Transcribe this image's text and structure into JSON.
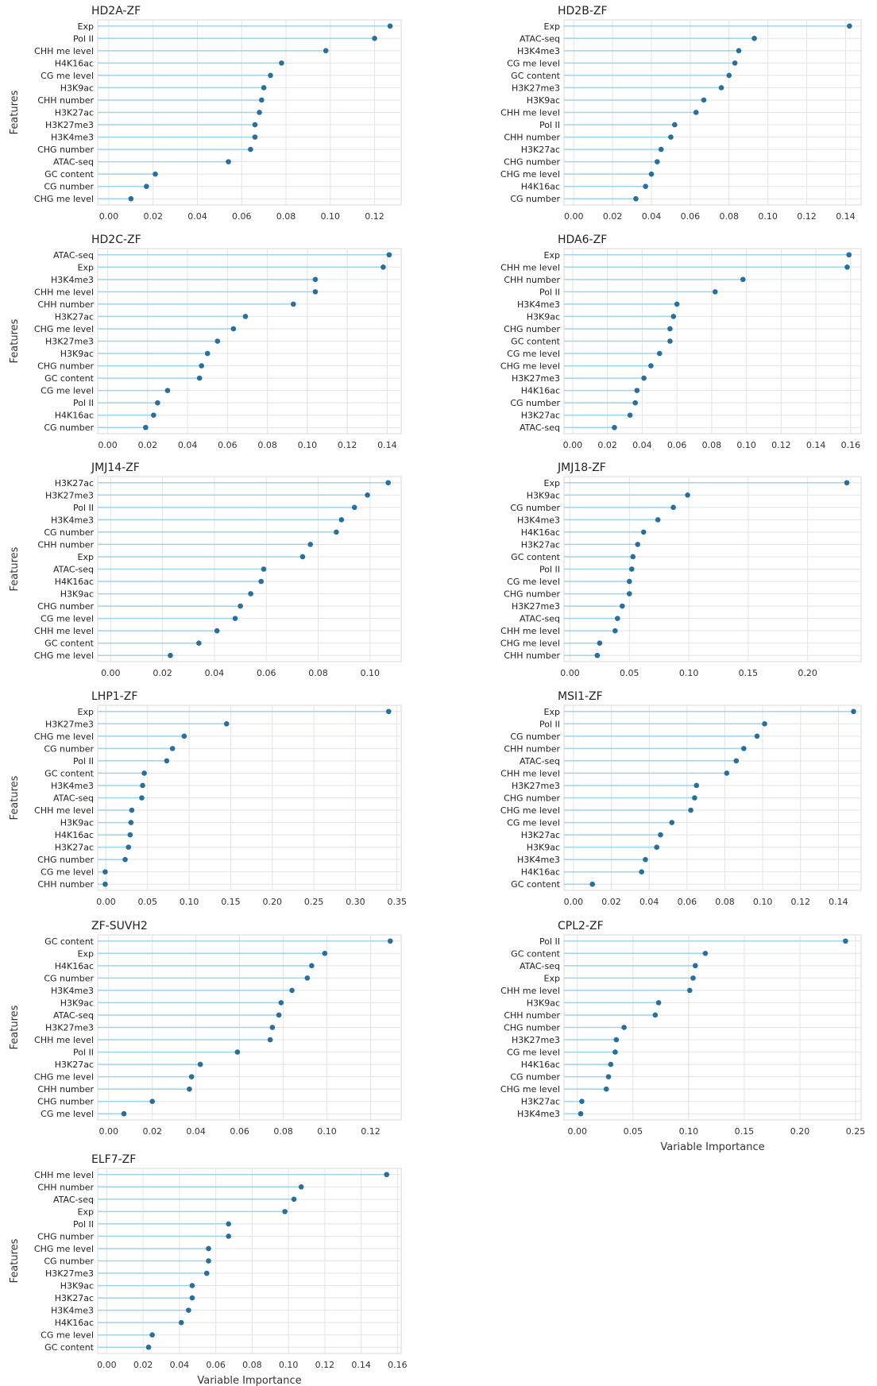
{
  "chart_data": [
    {
      "type": "lollipop",
      "title": "HD2A-ZF",
      "ylabel": "Features",
      "xlabel": "",
      "xticks": [
        0.0,
        0.02,
        0.04,
        0.06,
        0.08,
        0.1,
        0.12
      ],
      "xlim": [
        -0.005,
        0.132
      ],
      "categories": [
        "Exp",
        "Pol II",
        "CHH me level",
        "H4K16ac",
        "CG me level",
        "H3K9ac",
        "CHH number",
        "H3K27ac",
        "H3K27me3",
        "H3K4me3",
        "CHG number",
        "ATAC-seq",
        "GC content",
        "CG number",
        "CHG me level"
      ],
      "values": [
        0.127,
        0.12,
        0.098,
        0.078,
        0.073,
        0.07,
        0.069,
        0.068,
        0.066,
        0.066,
        0.064,
        0.054,
        0.021,
        0.017,
        0.01
      ]
    },
    {
      "type": "lollipop",
      "title": "HD2B-ZF",
      "ylabel": "",
      "xlabel": "",
      "xticks": [
        0.0,
        0.02,
        0.04,
        0.06,
        0.08,
        0.1,
        0.12,
        0.14
      ],
      "xlim": [
        -0.005,
        0.148
      ],
      "categories": [
        "Exp",
        "ATAC-seq",
        "H3K4me3",
        "CG me level",
        "GC content",
        "H3K27me3",
        "H3K9ac",
        "CHH me level",
        "Pol II",
        "CHH number",
        "H3K27ac",
        "CHG number",
        "CHG me level",
        "H4K16ac",
        "CG number"
      ],
      "values": [
        0.142,
        0.093,
        0.085,
        0.083,
        0.08,
        0.076,
        0.067,
        0.063,
        0.052,
        0.05,
        0.045,
        0.043,
        0.04,
        0.037,
        0.032
      ]
    },
    {
      "type": "lollipop",
      "title": "HD2C-ZF",
      "ylabel": "Features",
      "xlabel": "",
      "xticks": [
        0.0,
        0.02,
        0.04,
        0.06,
        0.08,
        0.1,
        0.12,
        0.14
      ],
      "xlim": [
        -0.005,
        0.147
      ],
      "categories": [
        "ATAC-seq",
        "Exp",
        "H3K4me3",
        "CHH me level",
        "CHH number",
        "H3K27ac",
        "CHG me level",
        "H3K27me3",
        "H3K9ac",
        "CHG number",
        "GC content",
        "CG me level",
        "Pol II",
        "H4K16ac",
        "CG number"
      ],
      "values": [
        0.141,
        0.138,
        0.104,
        0.104,
        0.093,
        0.069,
        0.063,
        0.055,
        0.05,
        0.047,
        0.046,
        0.03,
        0.025,
        0.023,
        0.019
      ]
    },
    {
      "type": "lollipop",
      "title": "HDA6-ZF",
      "ylabel": "",
      "xlabel": "",
      "xticks": [
        0.0,
        0.02,
        0.04,
        0.06,
        0.08,
        0.1,
        0.12,
        0.14,
        0.16
      ],
      "xlim": [
        -0.005,
        0.166
      ],
      "categories": [
        "Exp",
        "CHH me level",
        "CHH number",
        "Pol II",
        "H3K4me3",
        "H3K9ac",
        "CHG number",
        "GC content",
        "CG me level",
        "CHG me level",
        "H3K27me3",
        "H4K16ac",
        "CG number",
        "H3K27ac",
        "ATAC-seq"
      ],
      "values": [
        0.159,
        0.158,
        0.098,
        0.082,
        0.06,
        0.058,
        0.056,
        0.056,
        0.05,
        0.045,
        0.041,
        0.037,
        0.036,
        0.033,
        0.024
      ]
    },
    {
      "type": "lollipop",
      "title": "JMJ14-ZF",
      "ylabel": "Features",
      "xlabel": "",
      "xticks": [
        0.0,
        0.02,
        0.04,
        0.06,
        0.08,
        0.1
      ],
      "xlim": [
        -0.005,
        0.112
      ],
      "categories": [
        "H3K27ac",
        "H3K27me3",
        "Pol II",
        "H3K4me3",
        "CG number",
        "CHH number",
        "Exp",
        "ATAC-seq",
        "H4K16ac",
        "H3K9ac",
        "CHG number",
        "CG me level",
        "CHH me level",
        "GC content",
        "CHG me level"
      ],
      "values": [
        0.107,
        0.099,
        0.094,
        0.089,
        0.087,
        0.077,
        0.074,
        0.059,
        0.058,
        0.054,
        0.05,
        0.048,
        0.041,
        0.034,
        0.023
      ]
    },
    {
      "type": "lollipop",
      "title": "JMJ18-ZF",
      "ylabel": "",
      "xlabel": "",
      "xticks": [
        0.0,
        0.05,
        0.1,
        0.15,
        0.2
      ],
      "xlim": [
        -0.005,
        0.245
      ],
      "categories": [
        "Exp",
        "H3K9ac",
        "CG number",
        "H3K4me3",
        "H4K16ac",
        "H3K27ac",
        "GC content",
        "Pol II",
        "CG me level",
        "CHG number",
        "H3K27me3",
        "ATAC-seq",
        "CHH me level",
        "CHG me level",
        "CHH number"
      ],
      "values": [
        0.233,
        0.099,
        0.087,
        0.074,
        0.062,
        0.057,
        0.053,
        0.052,
        0.05,
        0.05,
        0.044,
        0.04,
        0.038,
        0.025,
        0.023
      ]
    },
    {
      "type": "lollipop",
      "title": "LHP1-ZF",
      "ylabel": "Features",
      "xlabel": "",
      "xticks": [
        0.0,
        0.05,
        0.1,
        0.15,
        0.2,
        0.25,
        0.3,
        0.35
      ],
      "xlim": [
        -0.01,
        0.355
      ],
      "categories": [
        "Exp",
        "H3K27me3",
        "CHG me level",
        "CG number",
        "Pol II",
        "GC content",
        "H3K4me3",
        "ATAC-seq",
        "CHH me level",
        "H3K9ac",
        "H4K16ac",
        "H3K27ac",
        "CHG number",
        "CG me level",
        "CHH number"
      ],
      "values": [
        0.34,
        0.145,
        0.094,
        0.08,
        0.073,
        0.046,
        0.044,
        0.043,
        0.031,
        0.03,
        0.029,
        0.027,
        0.023,
        -0.001,
        -0.001
      ]
    },
    {
      "type": "lollipop",
      "title": "MSI1-ZF",
      "ylabel": "",
      "xlabel": "",
      "xticks": [
        0.0,
        0.02,
        0.04,
        0.06,
        0.08,
        0.1,
        0.12,
        0.14
      ],
      "xlim": [
        -0.005,
        0.152
      ],
      "categories": [
        "Exp",
        "Pol II",
        "CG number",
        "CHH number",
        "ATAC-seq",
        "CHH me level",
        "H3K27me3",
        "CHG number",
        "CHG me level",
        "CG me level",
        "H3K27ac",
        "H3K9ac",
        "H3K4me3",
        "H4K16ac",
        "GC content"
      ],
      "values": [
        0.148,
        0.101,
        0.097,
        0.09,
        0.086,
        0.081,
        0.065,
        0.064,
        0.062,
        0.052,
        0.046,
        0.044,
        0.038,
        0.036,
        0.01
      ]
    },
    {
      "type": "lollipop",
      "title": "ZF-SUVH2",
      "ylabel": "Features",
      "xlabel": "",
      "xticks": [
        0.0,
        0.02,
        0.04,
        0.06,
        0.08,
        0.1,
        0.12
      ],
      "xlim": [
        -0.005,
        0.134
      ],
      "categories": [
        "GC content",
        "Exp",
        "H4K16ac",
        "CG number",
        "H3K4me3",
        "H3K9ac",
        "ATAC-seq",
        "H3K27me3",
        "CHH me level",
        "Pol II",
        "H3K27ac",
        "CHG me level",
        "CHH number",
        "CHG number",
        "CG me level"
      ],
      "values": [
        0.129,
        0.099,
        0.093,
        0.091,
        0.084,
        0.079,
        0.078,
        0.075,
        0.074,
        0.059,
        0.042,
        0.038,
        0.037,
        0.02,
        0.007
      ]
    },
    {
      "type": "lollipop",
      "title": "CPL2-ZF",
      "ylabel": "",
      "xlabel": "Variable Importance",
      "xticks": [
        0.0,
        0.05,
        0.1,
        0.15,
        0.2,
        0.25
      ],
      "xlim": [
        -0.012,
        0.255
      ],
      "categories": [
        "Pol II",
        "GC content",
        "ATAC-seq",
        "Exp",
        "CHH me level",
        "H3K9ac",
        "CHH number",
        "CHG number",
        "H3K27me3",
        "CG me level",
        "H4K16ac",
        "CG number",
        "CHG me level",
        "H3K27ac",
        "H3K4me3"
      ],
      "values": [
        0.241,
        0.115,
        0.106,
        0.104,
        0.101,
        0.073,
        0.07,
        0.042,
        0.035,
        0.034,
        0.03,
        0.028,
        0.026,
        0.004,
        0.003
      ]
    },
    {
      "type": "lollipop",
      "title": "ELF7-ZF",
      "ylabel": "Features",
      "xlabel": "Variable Importance",
      "xticks": [
        0.0,
        0.02,
        0.04,
        0.06,
        0.08,
        0.1,
        0.12,
        0.14,
        0.16
      ],
      "xlim": [
        -0.005,
        0.162
      ],
      "categories": [
        "CHH me level",
        "CHH number",
        "ATAC-seq",
        "Exp",
        "Pol II",
        "CHG number",
        "CHG me level",
        "CG number",
        "H3K27me3",
        "H3K9ac",
        "H3K27ac",
        "H3K4me3",
        "H4K16ac",
        "CG me level",
        "GC content"
      ],
      "values": [
        0.154,
        0.107,
        0.103,
        0.098,
        0.067,
        0.067,
        0.056,
        0.056,
        0.055,
        0.047,
        0.047,
        0.045,
        0.041,
        0.025,
        0.023
      ]
    }
  ]
}
